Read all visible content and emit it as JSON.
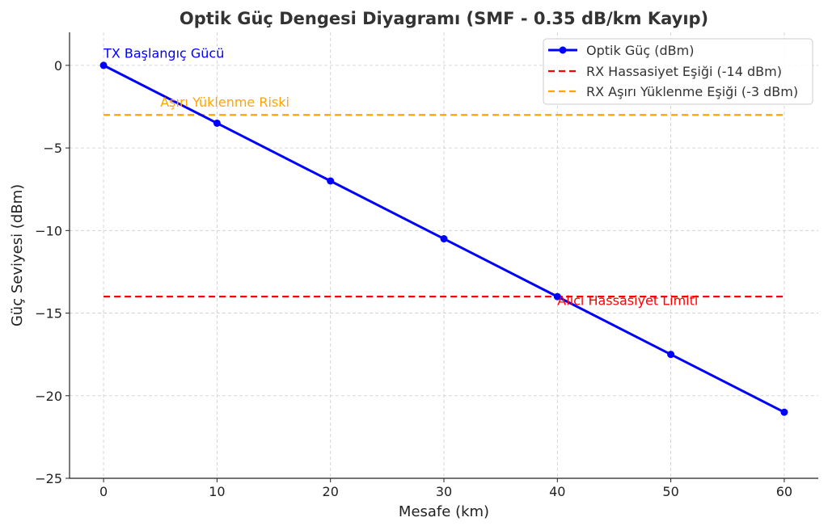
{
  "chart_data": {
    "type": "line",
    "title": "Optik Güç Dengesi Diyagramı (SMF - 0.35 dB/km Kayıp)",
    "xlabel": "Mesafe (km)",
    "ylabel": "Güç Seviyesi (dBm)",
    "xlim": [
      -3,
      63
    ],
    "ylim": [
      -25,
      2
    ],
    "xticks": [
      0,
      10,
      20,
      30,
      40,
      50,
      60
    ],
    "xtick_labels": [
      "0",
      "10",
      "20",
      "30",
      "40",
      "50",
      "60"
    ],
    "yticks": [
      0,
      -5,
      -10,
      -15,
      -20,
      -25
    ],
    "ytick_labels": [
      "0",
      "−5",
      "−10",
      "−15",
      "−20",
      "−25"
    ],
    "grid": true,
    "legend_position": "top-right",
    "series": [
      {
        "name": "Optik Güç (dBm)",
        "color": "#0000ff",
        "style": "solid-marker",
        "x": [
          0,
          10,
          20,
          30,
          40,
          50,
          60
        ],
        "y": [
          0,
          -3.5,
          -7,
          -10.5,
          -14,
          -17.5,
          -21
        ]
      }
    ],
    "hlines": [
      {
        "name": "RX Hassasiyet Eşiği (-14 dBm)",
        "y": -14,
        "color": "#ff0000",
        "style": "dashed"
      },
      {
        "name": "RX Aşırı Yüklenme Eşiği (-3 dBm)",
        "y": -3,
        "color": "#ffa500",
        "style": "dashed"
      }
    ],
    "hline_xrange": [
      0,
      60
    ],
    "annotations": [
      {
        "text": "TX Başlangıç Gücü",
        "x": 0,
        "y": 0.45,
        "color": "#0000ff"
      },
      {
        "text": "Aşırı Yüklenme Riski",
        "x": 5,
        "y": -2.5,
        "color": "#ffa500"
      },
      {
        "text": "Alıcı Hassasiyet Limiti",
        "x": 40,
        "y": -14.5,
        "color": "#ff0000"
      }
    ]
  }
}
